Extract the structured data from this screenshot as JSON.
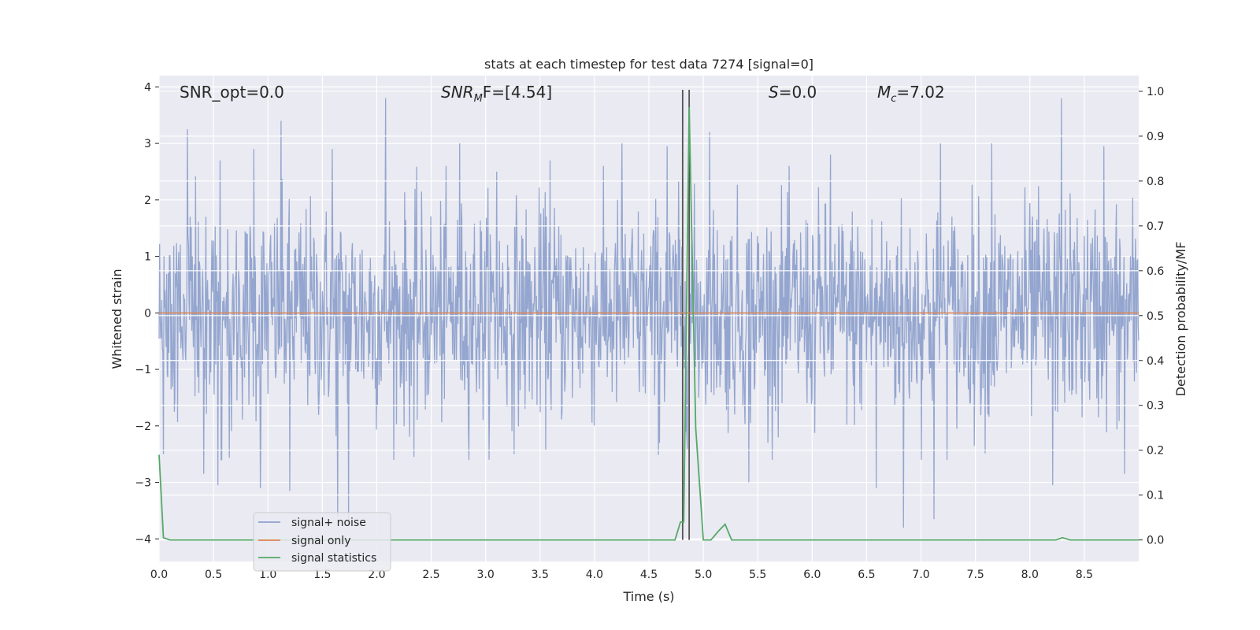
{
  "chart_data": {
    "type": "line",
    "title": "stats at each timestep for test data 7274 [signal=0]",
    "xlabel": "Time (s)",
    "ylabel": "Whitened strain",
    "ylabel_right": "Detection probability/MF",
    "xlim": [
      0.0,
      9.0
    ],
    "ylim": [
      -4.4,
      4.2
    ],
    "ylim_right": [
      -0.048,
      1.035
    ],
    "xticks": [
      0.0,
      0.5,
      1.0,
      1.5,
      2.0,
      2.5,
      3.0,
      3.5,
      4.0,
      4.5,
      5.0,
      5.5,
      6.0,
      6.5,
      7.0,
      7.5,
      8.0,
      8.5
    ],
    "xtick_labels": [
      "0.0",
      "0.5",
      "1.0",
      "1.5",
      "2.0",
      "2.5",
      "3.0",
      "3.5",
      "4.0",
      "4.5",
      "5.0",
      "5.5",
      "6.0",
      "6.5",
      "7.0",
      "7.5",
      "8.0",
      "8.5"
    ],
    "yticks": [
      4,
      3,
      2,
      1,
      0,
      -1,
      -2,
      -3,
      -4
    ],
    "ytick_labels": [
      "4",
      "3",
      "2",
      "1",
      "0",
      "−1",
      "−2",
      "−3",
      "−4"
    ],
    "yticks_right": [
      1.0,
      0.9,
      0.8,
      0.7,
      0.6,
      0.5,
      0.4,
      0.3,
      0.2,
      0.1,
      0.0
    ],
    "ytick_labels_right": [
      "1.0",
      "0.9",
      "0.8",
      "0.7",
      "0.6",
      "0.5",
      "0.4",
      "0.3",
      "0.2",
      "0.1",
      "0.0"
    ],
    "grid": true,
    "legend_position": "lower-left",
    "annotations": [
      {
        "text": "SNR_opt=0.0",
        "italic_part": "",
        "rest": ""
      },
      {
        "text": "",
        "italic_part": "SNR",
        "sub": "M",
        "rest": "F=[4.54]"
      },
      {
        "text": "",
        "italic_part": "S",
        "sub": "",
        "rest": "=0.0"
      },
      {
        "text": "",
        "italic_part": "M",
        "sub": "c",
        "rest": "=7.02"
      }
    ],
    "vlines": [
      4.81,
      4.87
    ],
    "series": [
      {
        "name": "signal+ noise",
        "axis": "left",
        "color": "#8fa2cc",
        "description_values": "whitened noise, approx. Gaussian, unit variance",
        "x_start": 0.0,
        "x_end": 9.0,
        "peaks": [
          {
            "x": 0.26,
            "y": 3.25
          },
          {
            "x": 0.41,
            "y": 2.6
          },
          {
            "x": 0.56,
            "y": 2.7
          },
          {
            "x": 0.87,
            "y": 2.9
          },
          {
            "x": 1.12,
            "y": 3.4
          },
          {
            "x": 1.59,
            "y": 2.9
          },
          {
            "x": 2.08,
            "y": 3.8
          },
          {
            "x": 2.76,
            "y": 3.0
          },
          {
            "x": 3.1,
            "y": 2.5
          },
          {
            "x": 3.59,
            "y": 2.7
          },
          {
            "x": 4.25,
            "y": 3.0
          },
          {
            "x": 4.67,
            "y": 2.95
          },
          {
            "x": 5.06,
            "y": 3.2
          },
          {
            "x": 6.17,
            "y": 2.8
          },
          {
            "x": 6.59,
            "y": 2.7
          },
          {
            "x": 7.18,
            "y": 3.0
          },
          {
            "x": 7.65,
            "y": 3.0
          },
          {
            "x": 8.29,
            "y": 3.8
          },
          {
            "x": 8.68,
            "y": 2.95
          }
        ],
        "troughs": [
          {
            "x": 0.04,
            "y": -2.5
          },
          {
            "x": 0.41,
            "y": -2.85
          },
          {
            "x": 0.54,
            "y": -3.05
          },
          {
            "x": 0.93,
            "y": -3.1
          },
          {
            "x": 1.2,
            "y": -3.15
          },
          {
            "x": 1.64,
            "y": -3.6
          },
          {
            "x": 1.74,
            "y": -3.75
          },
          {
            "x": 2.34,
            "y": -2.55
          },
          {
            "x": 4.6,
            "y": -2.3
          },
          {
            "x": 5.42,
            "y": -3.0
          },
          {
            "x": 6.59,
            "y": -3.1
          },
          {
            "x": 6.84,
            "y": -3.8
          },
          {
            "x": 7.12,
            "y": -3.65
          },
          {
            "x": 8.21,
            "y": -3.05
          },
          {
            "x": 8.87,
            "y": -2.85
          }
        ]
      },
      {
        "name": "signal only",
        "axis": "left",
        "color": "#dd8452",
        "x": [
          0.0,
          9.0
        ],
        "y": [
          0.0,
          0.0
        ]
      },
      {
        "name": "signal statistics",
        "axis": "right",
        "color": "#55a868",
        "x": [
          0.0,
          0.04,
          0.1,
          4.74,
          4.79,
          4.82,
          4.87,
          4.93,
          5.0,
          5.07,
          5.14,
          5.2,
          5.26,
          8.24,
          8.3,
          8.37,
          9.0
        ],
        "y": [
          0.19,
          0.005,
          0.0,
          0.0,
          0.04,
          0.04,
          0.965,
          0.25,
          0.0,
          0.0,
          0.02,
          0.035,
          0.0,
          0.0,
          0.005,
          0.0,
          0.0
        ]
      }
    ]
  }
}
